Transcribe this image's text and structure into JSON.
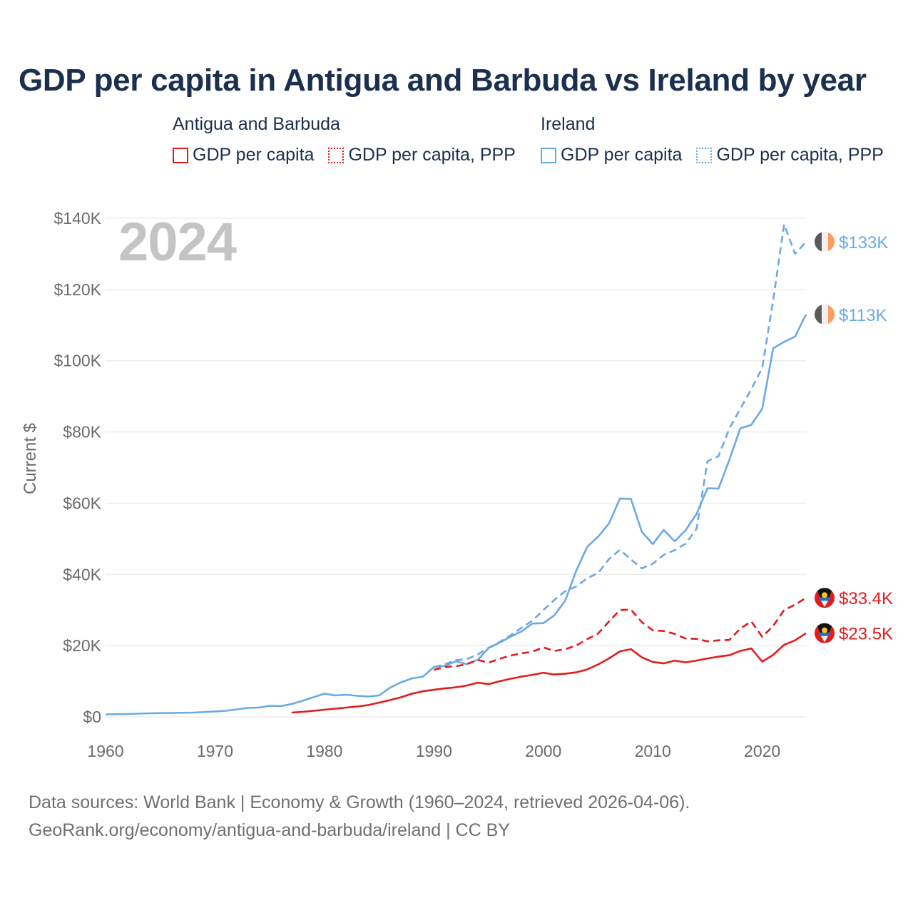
{
  "title": "GDP per capita in Antigua and Barbuda vs Ireland by year",
  "year_label": "2024",
  "legend": {
    "groups": [
      {
        "name": "Antigua and Barbuda",
        "color": "#e31b1b",
        "items": [
          {
            "label": "GDP per capita",
            "style": "solid"
          },
          {
            "label": "GDP per capita, PPP",
            "style": "dotted"
          }
        ]
      },
      {
        "name": "Ireland",
        "color": "#6aaae4",
        "items": [
          {
            "label": "GDP per capita",
            "style": "solid"
          },
          {
            "label": "GDP per capita, PPP",
            "style": "dotted"
          }
        ]
      }
    ]
  },
  "footer": {
    "line1": "Data sources: World Bank | Economy & Growth (1960–2024, retrieved 2026-04-06).",
    "line2": "GeoRank.org/economy/antigua-and-barbuda/ireland | CC BY"
  },
  "colors": {
    "antigua": "#e31b1b",
    "ireland": "#6aaae4",
    "grid": "#e6e6e6",
    "tick": "#6b6b6b"
  },
  "chart_data": {
    "type": "line",
    "ylabel": "Current $",
    "xlim": [
      1960,
      2024
    ],
    "ylim": [
      0,
      140000
    ],
    "x_ticks": [
      1960,
      1970,
      1980,
      1990,
      2000,
      2010,
      2020
    ],
    "y_ticks": [
      {
        "value": 0,
        "label": "$0"
      },
      {
        "value": 20000,
        "label": "$20K"
      },
      {
        "value": 40000,
        "label": "$40K"
      },
      {
        "value": 60000,
        "label": "$60K"
      },
      {
        "value": 80000,
        "label": "$80K"
      },
      {
        "value": 100000,
        "label": "$100K"
      },
      {
        "value": 120000,
        "label": "$120K"
      },
      {
        "value": 140000,
        "label": "$140K"
      }
    ],
    "series": [
      {
        "name": "Ireland GDP per capita",
        "country": "Ireland",
        "color": "#6aaae4",
        "dash": "solid",
        "end_label": "$113K",
        "x": [
          1960,
          1962,
          1964,
          1966,
          1968,
          1970,
          1971,
          1972,
          1973,
          1974,
          1975,
          1976,
          1977,
          1978,
          1979,
          1980,
          1981,
          1982,
          1983,
          1984,
          1985,
          1986,
          1987,
          1988,
          1989,
          1990,
          1991,
          1992,
          1993,
          1994,
          1995,
          1996,
          1997,
          1998,
          1999,
          2000,
          2001,
          2002,
          2003,
          2004,
          2005,
          2006,
          2007,
          2008,
          2009,
          2010,
          2011,
          2012,
          2013,
          2014,
          2015,
          2016,
          2017,
          2018,
          2019,
          2020,
          2021,
          2022,
          2023,
          2024
        ],
        "y": [
          700,
          800,
          1000,
          1100,
          1200,
          1500,
          1700,
          2100,
          2500,
          2600,
          3100,
          3000,
          3600,
          4500,
          5500,
          6500,
          6000,
          6200,
          5900,
          5700,
          6000,
          8200,
          9700,
          10800,
          11300,
          14000,
          14300,
          15600,
          14800,
          16000,
          19300,
          20800,
          22500,
          24000,
          26200,
          26300,
          28500,
          32600,
          41000,
          47700,
          50600,
          54300,
          61300,
          61200,
          52000,
          48500,
          52500,
          49300,
          52400,
          57000,
          64200,
          64100,
          72200,
          81000,
          82000,
          86500,
          103500,
          105300,
          106800,
          113000
        ]
      },
      {
        "name": "Ireland GDP per capita, PPP",
        "country": "Ireland",
        "color": "#6aaae4",
        "dash": "dashed",
        "end_label": "$133K",
        "x": [
          1990,
          1991,
          1992,
          1993,
          1994,
          1995,
          1996,
          1997,
          1998,
          1999,
          2000,
          2001,
          2002,
          2003,
          2004,
          2005,
          2006,
          2007,
          2008,
          2009,
          2010,
          2011,
          2012,
          2013,
          2014,
          2015,
          2016,
          2017,
          2018,
          2019,
          2020,
          2021,
          2022,
          2023,
          2024
        ],
        "y": [
          14000,
          14800,
          15900,
          16200,
          17500,
          19400,
          21000,
          22900,
          25000,
          27000,
          30000,
          32800,
          35300,
          36600,
          38900,
          40400,
          44300,
          46900,
          44200,
          41700,
          43000,
          45500,
          46800,
          48600,
          52800,
          71800,
          73200,
          81000,
          86500,
          92000,
          98000,
          117000,
          138300,
          130000,
          133400
        ]
      },
      {
        "name": "Antigua and Barbuda GDP per capita",
        "country": "Antigua and Barbuda",
        "color": "#e31b1b",
        "dash": "solid",
        "end_label": "$23.5K",
        "x": [
          1977,
          1978,
          1979,
          1980,
          1981,
          1982,
          1983,
          1984,
          1985,
          1986,
          1987,
          1988,
          1989,
          1990,
          1991,
          1992,
          1993,
          1994,
          1995,
          1996,
          1997,
          1998,
          1999,
          2000,
          2001,
          2002,
          2003,
          2004,
          2005,
          2006,
          2007,
          2008,
          2009,
          2010,
          2011,
          2012,
          2013,
          2014,
          2015,
          2016,
          2017,
          2018,
          2019,
          2020,
          2021,
          2022,
          2023,
          2024
        ],
        "y": [
          1200,
          1400,
          1700,
          2000,
          2300,
          2600,
          2900,
          3300,
          4000,
          4700,
          5500,
          6500,
          7200,
          7600,
          8000,
          8300,
          8800,
          9600,
          9200,
          10000,
          10700,
          11300,
          11800,
          12400,
          11900,
          12100,
          12500,
          13300,
          14700,
          16400,
          18400,
          19000,
          16700,
          15400,
          15000,
          15800,
          15300,
          15800,
          16400,
          16900,
          17300,
          18500,
          19200,
          15500,
          17400,
          20200,
          21500,
          23500
        ]
      },
      {
        "name": "Antigua and Barbuda GDP per capita, PPP",
        "country": "Antigua and Barbuda",
        "color": "#e31b1b",
        "dash": "dashed",
        "end_label": "$33.4K",
        "x": [
          1990,
          1991,
          1992,
          1993,
          1994,
          1995,
          1996,
          1997,
          1998,
          1999,
          2000,
          2001,
          2002,
          2003,
          2004,
          2005,
          2006,
          2007,
          2008,
          2009,
          2010,
          2011,
          2012,
          2013,
          2014,
          2015,
          2016,
          2017,
          2018,
          2019,
          2020,
          2021,
          2022,
          2023,
          2024
        ],
        "y": [
          13200,
          14000,
          14200,
          14800,
          16000,
          15200,
          16300,
          17200,
          17800,
          18300,
          19500,
          18500,
          19000,
          20000,
          21800,
          23400,
          26800,
          30000,
          30100,
          26600,
          24300,
          24100,
          23300,
          22000,
          21900,
          21200,
          21500,
          21600,
          24800,
          26800,
          22500,
          25500,
          30000,
          31500,
          33400
        ]
      }
    ]
  }
}
